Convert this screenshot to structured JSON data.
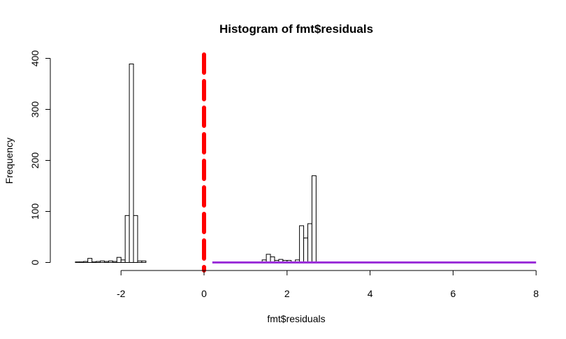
{
  "chart_data": {
    "type": "bar",
    "title": "Histogram of fmt$residuals",
    "xlabel": "fmt$residuals",
    "ylabel": "Frequency",
    "xlim": [
      -3.2,
      8
    ],
    "ylim": [
      0,
      400
    ],
    "x_ticks": [
      -2,
      0,
      2,
      4,
      6,
      8
    ],
    "y_ticks": [
      0,
      100,
      200,
      300,
      400
    ],
    "bin_width": 0.1,
    "bins": [
      {
        "x0": -3.1,
        "count": 1
      },
      {
        "x0": -3.0,
        "count": 1
      },
      {
        "x0": -2.9,
        "count": 2
      },
      {
        "x0": -2.8,
        "count": 8
      },
      {
        "x0": -2.7,
        "count": 1
      },
      {
        "x0": -2.6,
        "count": 2
      },
      {
        "x0": -2.5,
        "count": 3
      },
      {
        "x0": -2.4,
        "count": 2
      },
      {
        "x0": -2.3,
        "count": 3
      },
      {
        "x0": -2.2,
        "count": 2
      },
      {
        "x0": -2.1,
        "count": 10
      },
      {
        "x0": -2.0,
        "count": 5
      },
      {
        "x0": -1.9,
        "count": 92
      },
      {
        "x0": -1.8,
        "count": 389
      },
      {
        "x0": -1.7,
        "count": 92
      },
      {
        "x0": -1.6,
        "count": 3
      },
      {
        "x0": -1.5,
        "count": 3
      },
      {
        "x0": 1.4,
        "count": 5
      },
      {
        "x0": 1.5,
        "count": 16
      },
      {
        "x0": 1.6,
        "count": 11
      },
      {
        "x0": 1.7,
        "count": 4
      },
      {
        "x0": 1.8,
        "count": 6
      },
      {
        "x0": 1.9,
        "count": 4
      },
      {
        "x0": 2.0,
        "count": 4
      },
      {
        "x0": 2.1,
        "count": 0
      },
      {
        "x0": 2.2,
        "count": 5
      },
      {
        "x0": 2.3,
        "count": 72
      },
      {
        "x0": 2.4,
        "count": 48
      },
      {
        "x0": 2.5,
        "count": 76
      },
      {
        "x0": 2.6,
        "count": 170
      }
    ],
    "overlays": [
      {
        "kind": "vline",
        "x": 0,
        "color": "#ff0000",
        "style": "dashed"
      },
      {
        "kind": "segment",
        "x0": 0.2,
        "x1": 8,
        "y": 0,
        "color": "#9b30d9",
        "style": "solid"
      }
    ],
    "colors": {
      "bar_fill": "#ffffff",
      "bar_stroke": "#000000"
    }
  }
}
